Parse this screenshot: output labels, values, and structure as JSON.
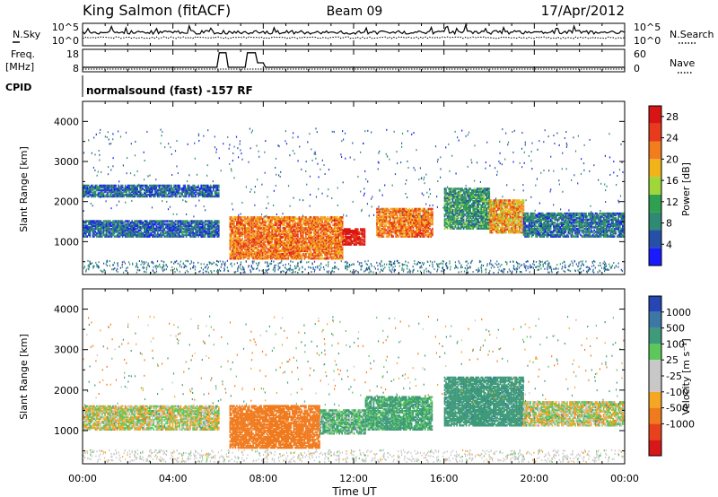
{
  "header": {
    "station": "King Salmon (fitACF)",
    "beam": "Beam 09",
    "date": "17/Apr/2012"
  },
  "noise_panel": {
    "left_label": "N.Sky",
    "right_label": "N.Search",
    "left_ticks": [
      "10^5",
      "10^0"
    ],
    "right_ticks": [
      "10^5",
      "10^0"
    ]
  },
  "freq_panel": {
    "left_label_1": "Freq.",
    "left_label_2": "[MHz]",
    "right_label": "Nave",
    "left_ticks": [
      "18",
      "8"
    ],
    "right_ticks": [
      "60",
      "0"
    ]
  },
  "cpid": {
    "label": "CPID",
    "text": "normalsound (fast) -157 RF"
  },
  "time_axis": {
    "label": "Time UT",
    "ticks": [
      "00:00",
      "04:00",
      "08:00",
      "12:00",
      "16:00",
      "20:00",
      "00:00"
    ]
  },
  "range_axis": {
    "label": "Slant Range [km]",
    "ticks": [
      "1000",
      "2000",
      "3000",
      "4000"
    ]
  },
  "power_scale": {
    "label": "Power [dB]",
    "ticks": [
      "4",
      "8",
      "12",
      "16",
      "20",
      "24",
      "28"
    ],
    "colors": [
      "#1a1aff",
      "#2650a8",
      "#2f8a73",
      "#2ea050",
      "#9fd63a",
      "#f0b41a",
      "#f27d1e",
      "#e83a1c",
      "#d81414"
    ]
  },
  "velocity_scale": {
    "label": "Velocity [m s⁻¹]",
    "ticks": [
      "1000",
      "500",
      "100",
      "25",
      "-25",
      "-100",
      "-500",
      "-1000"
    ],
    "colors": [
      "#2646b4",
      "#3d77a6",
      "#3e9a78",
      "#5cc85c",
      "#c8c8c8",
      "#c8c8c8",
      "#f5a623",
      "#f07b1e",
      "#e8421c",
      "#d81818"
    ]
  },
  "chart_data": [
    {
      "type": "line",
      "title": "N.Sky / N.Search",
      "x_range": [
        "00:00",
        "24:00"
      ],
      "series": [
        {
          "name": "N.Sky",
          "level": "10^5 (near constant)"
        },
        {
          "name": "N.Search",
          "level": "10^0 (near constant)"
        }
      ]
    },
    {
      "type": "line",
      "title": "Freq. [MHz] / Nave",
      "x": [
        0,
        5.95,
        6.05,
        6.35,
        6.45,
        7.2,
        7.3,
        7.65,
        7.75,
        8.0,
        8.1,
        24
      ],
      "y": [
        10,
        10,
        16.5,
        16.5,
        10,
        10,
        16.5,
        16.5,
        12,
        12,
        10,
        10
      ],
      "xlabel": "Time UT (hours)",
      "ylabel": "Freq. [MHz]",
      "ylim": [
        8,
        18
      ]
    },
    {
      "type": "heatmap",
      "title": "Power [dB]",
      "xlabel": "Time UT",
      "ylabel": "Slant Range [km]",
      "xlim": [
        0,
        24
      ],
      "ylim": [
        180,
        4500
      ],
      "colorbar_range": [
        0,
        30
      ],
      "dominant_regions": [
        {
          "time": "00:00-06:00",
          "range_km": [
            1100,
            1500
          ],
          "power_db": 6
        },
        {
          "time": "00:00-06:00",
          "range_km": [
            2100,
            2400
          ],
          "power_db": 6
        },
        {
          "time": "06:30-11:30",
          "range_km": [
            550,
            1600
          ],
          "power_db": 22
        },
        {
          "time": "11:30-12:30",
          "range_km": [
            900,
            1300
          ],
          "power_db": 28
        },
        {
          "time": "13:00-15:30",
          "range_km": [
            1100,
            1800
          ],
          "power_db": 22
        },
        {
          "time": "16:00-18:00",
          "range_km": [
            1300,
            2300
          ],
          "power_db": 10
        },
        {
          "time": "18:00-19:30",
          "range_km": [
            1200,
            2000
          ],
          "power_db": 20
        },
        {
          "time": "19:30-24:00",
          "range_km": [
            1100,
            1700
          ],
          "power_db": 7
        }
      ]
    },
    {
      "type": "heatmap",
      "title": "Velocity [m s-1]",
      "xlabel": "Time UT",
      "ylabel": "Slant Range [km]",
      "xlim": [
        0,
        24
      ],
      "ylim": [
        180,
        4500
      ],
      "colorbar_range": [
        -1000,
        1000
      ],
      "dominant_regions": [
        {
          "time": "00:00-06:00",
          "range_km": [
            1000,
            1600
          ],
          "velocity": 0
        },
        {
          "time": "06:30-10:30",
          "range_km": [
            550,
            1600
          ],
          "velocity": -300
        },
        {
          "time": "10:30-12:30",
          "range_km": [
            900,
            1500
          ],
          "velocity": 100
        },
        {
          "time": "12:30-15:30",
          "range_km": [
            1000,
            1800
          ],
          "velocity": 150
        },
        {
          "time": "16:00-19:30",
          "range_km": [
            1100,
            2300
          ],
          "velocity": 400
        },
        {
          "time": "19:30-24:00",
          "range_km": [
            1100,
            1700
          ],
          "velocity": 0
        }
      ]
    }
  ]
}
